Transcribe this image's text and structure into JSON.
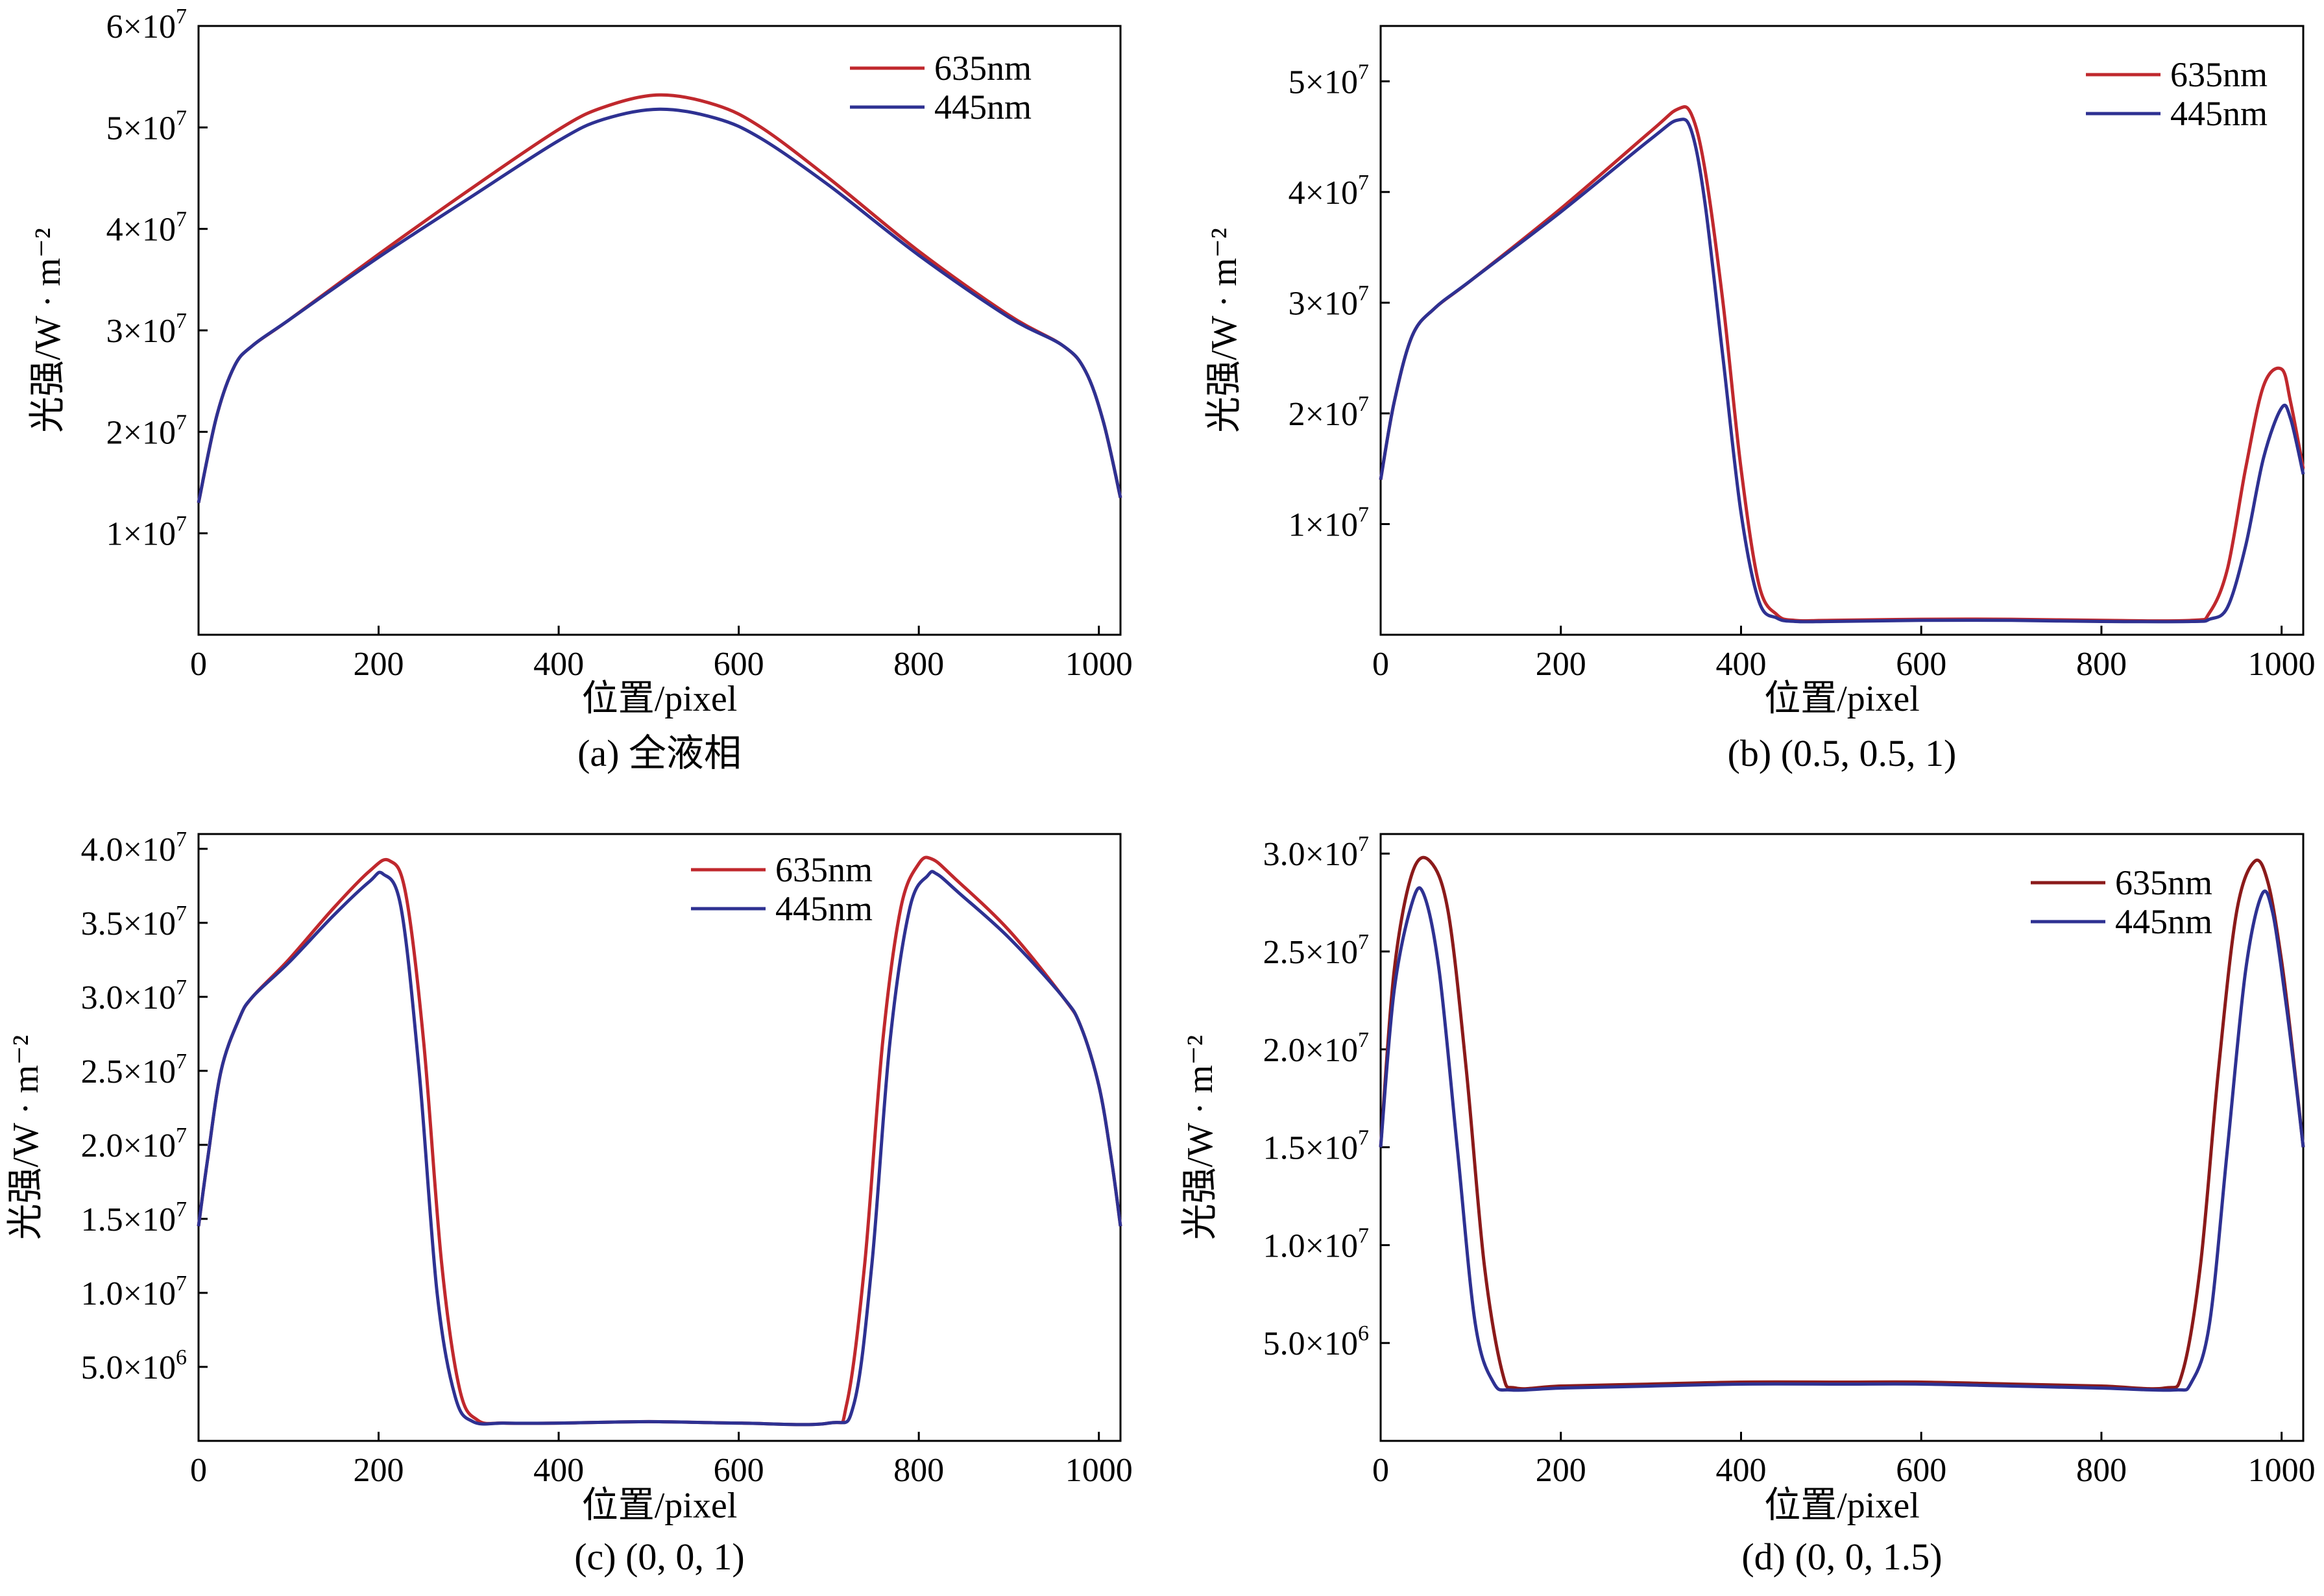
{
  "colors": {
    "red": "#c0282d",
    "blue": "#2e3192",
    "darkred": "#8b1a1a",
    "darkblue": "#1f1f5c"
  },
  "chart_data": [
    {
      "type": "line",
      "caption": "(a) 全液相",
      "xlabel": "位置/pixel",
      "ylabel": "光强/W · m⁻²",
      "xlim": [
        0,
        1024
      ],
      "ylim": [
        0,
        60000000
      ],
      "x_ticks": [
        0,
        200,
        400,
        600,
        800,
        1000
      ],
      "x_tick_labels": [
        "0",
        "200",
        "400",
        "600",
        "800",
        "1000"
      ],
      "y_ticks": [
        10000000,
        20000000,
        30000000,
        40000000,
        50000000,
        60000000
      ],
      "y_tick_labels": [
        [
          "1",
          "7"
        ],
        [
          "2",
          "7"
        ],
        [
          "3",
          "7"
        ],
        [
          "4",
          "7"
        ],
        [
          "5",
          "7"
        ],
        [
          "6",
          "7"
        ]
      ],
      "legend": "top-right",
      "series": [
        {
          "name": "635nm",
          "color": "#c0282d",
          "x": [
            0,
            20,
            40,
            60,
            100,
            200,
            300,
            400,
            450,
            512,
            575,
            625,
            700,
            800,
            900,
            960,
            985,
            1005,
            1024
          ],
          "y": [
            13000000,
            21500000,
            26500000,
            28500000,
            31000000,
            37500000,
            43800000,
            49800000,
            52000000,
            53200000,
            52200000,
            50000000,
            45000000,
            37800000,
            31500000,
            28500000,
            26000000,
            21000000,
            13500000
          ]
        },
        {
          "name": "445nm",
          "color": "#2e3192",
          "x": [
            0,
            20,
            40,
            60,
            100,
            200,
            300,
            400,
            450,
            512,
            575,
            625,
            700,
            800,
            900,
            960,
            985,
            1005,
            1024
          ],
          "y": [
            13000000,
            21500000,
            26500000,
            28500000,
            31000000,
            37200000,
            43000000,
            48700000,
            50800000,
            51800000,
            50900000,
            48900000,
            44300000,
            37400000,
            31300000,
            28500000,
            26000000,
            21000000,
            13500000
          ]
        }
      ]
    },
    {
      "type": "line",
      "caption": "(b) (0.5, 0.5, 1)",
      "xlabel": "位置/pixel",
      "ylabel": "光强/W · m⁻²",
      "xlim": [
        0,
        1024
      ],
      "ylim": [
        0,
        55000000
      ],
      "x_ticks": [
        0,
        200,
        400,
        600,
        800,
        1000
      ],
      "x_tick_labels": [
        "0",
        "200",
        "400",
        "600",
        "800",
        "1000"
      ],
      "y_ticks": [
        10000000,
        20000000,
        30000000,
        40000000,
        50000000
      ],
      "y_tick_labels": [
        [
          "1",
          "7"
        ],
        [
          "2",
          "7"
        ],
        [
          "3",
          "7"
        ],
        [
          "4",
          "7"
        ],
        [
          "5",
          "7"
        ]
      ],
      "legend": "top-right",
      "series": [
        {
          "name": "635nm",
          "color": "#c0282d",
          "x": [
            0,
            15,
            35,
            60,
            100,
            200,
            300,
            330,
            345,
            360,
            380,
            400,
            420,
            440,
            460,
            500,
            600,
            700,
            800,
            900,
            920,
            940,
            960,
            980,
            1000,
            1010,
            1024
          ],
          "y": [
            14000000,
            21000000,
            27000000,
            29500000,
            32000000,
            38500000,
            45500000,
            47500000,
            47000000,
            42000000,
            30000000,
            15000000,
            4500000,
            1800000,
            1300000,
            1300000,
            1400000,
            1400000,
            1300000,
            1300000,
            2000000,
            6000000,
            15000000,
            22500000,
            24000000,
            21000000,
            15000000
          ]
        },
        {
          "name": "445nm",
          "color": "#2e3192",
          "x": [
            0,
            15,
            35,
            60,
            100,
            200,
            300,
            330,
            345,
            360,
            380,
            400,
            420,
            440,
            460,
            500,
            600,
            700,
            800,
            900,
            920,
            940,
            960,
            980,
            1000,
            1010,
            1024
          ],
          "y": [
            14000000,
            21000000,
            27000000,
            29500000,
            32000000,
            38200000,
            44800000,
            46500000,
            45500000,
            39000000,
            25000000,
            11000000,
            3000000,
            1500000,
            1200000,
            1200000,
            1300000,
            1300000,
            1200000,
            1200000,
            1400000,
            2500000,
            8000000,
            16000000,
            20500000,
            19500000,
            14500000
          ]
        }
      ]
    },
    {
      "type": "line",
      "caption": "(c) (0, 0, 1)",
      "xlabel": "位置/pixel",
      "ylabel": "光强/W · m⁻²",
      "xlim": [
        0,
        1024
      ],
      "ylim": [
        0,
        41000000
      ],
      "x_ticks": [
        0,
        200,
        400,
        600,
        800,
        1000
      ],
      "x_tick_labels": [
        "0",
        "200",
        "400",
        "600",
        "800",
        "1000"
      ],
      "y_ticks": [
        5000000,
        10000000,
        15000000,
        20000000,
        25000000,
        30000000,
        35000000,
        40000000
      ],
      "y_tick_labels": [
        [
          "5.0",
          "6"
        ],
        [
          "1.0",
          "7"
        ],
        [
          "1.5",
          "7"
        ],
        [
          "2.0",
          "7"
        ],
        [
          "2.5",
          "7"
        ],
        [
          "3.0",
          "7"
        ],
        [
          "3.5",
          "7"
        ],
        [
          "4.0",
          "7"
        ]
      ],
      "legend": "top-right",
      "series": [
        {
          "name": "635nm",
          "color": "#c0282d",
          "x": [
            0,
            10,
            25,
            45,
            60,
            100,
            150,
            190,
            212,
            230,
            250,
            270,
            290,
            310,
            340,
            400,
            500,
            600,
            700,
            720,
            740,
            760,
            780,
            800,
            815,
            840,
            900,
            960,
            980,
            1000,
            1014,
            1024
          ],
          "y": [
            14500000,
            19000000,
            25000000,
            28500000,
            30000000,
            32500000,
            36000000,
            38500000,
            39200000,
            37000000,
            27000000,
            12000000,
            3500000,
            1400000,
            1200000,
            1200000,
            1300000,
            1200000,
            1200000,
            2500000,
            12000000,
            27000000,
            36000000,
            39000000,
            39300000,
            38000000,
            34500000,
            30000000,
            28000000,
            24000000,
            19000000,
            14500000
          ]
        },
        {
          "name": "445nm",
          "color": "#2e3192",
          "x": [
            0,
            10,
            25,
            45,
            60,
            100,
            150,
            190,
            205,
            225,
            245,
            265,
            285,
            305,
            340,
            400,
            500,
            600,
            700,
            728,
            748,
            768,
            790,
            810,
            820,
            845,
            900,
            960,
            980,
            1000,
            1014,
            1024
          ],
          "y": [
            14500000,
            19000000,
            25000000,
            28500000,
            30000000,
            32300000,
            35500000,
            37800000,
            38300000,
            36000000,
            25000000,
            10000000,
            3000000,
            1300000,
            1200000,
            1200000,
            1300000,
            1200000,
            1200000,
            2500000,
            12000000,
            27000000,
            36000000,
            38200000,
            38300000,
            37000000,
            34000000,
            30000000,
            28000000,
            24000000,
            19000000,
            14500000
          ]
        }
      ]
    },
    {
      "type": "line",
      "caption": "(d) (0, 0, 1.5)",
      "xlabel": "位置/pixel",
      "ylabel": "光强/W · m⁻²",
      "xlim": [
        0,
        1024
      ],
      "ylim": [
        0,
        31000000
      ],
      "x_ticks": [
        0,
        200,
        400,
        600,
        800,
        1000
      ],
      "x_tick_labels": [
        "0",
        "200",
        "400",
        "600",
        "800",
        "1000"
      ],
      "y_ticks": [
        5000000,
        10000000,
        15000000,
        20000000,
        25000000,
        30000000
      ],
      "y_tick_labels": [
        [
          "5.0",
          "6"
        ],
        [
          "1.0",
          "7"
        ],
        [
          "1.5",
          "7"
        ],
        [
          "2.0",
          "7"
        ],
        [
          "2.5",
          "7"
        ],
        [
          "3.0",
          "7"
        ]
      ],
      "legend": "top-right",
      "series": [
        {
          "name": "635nm",
          "color": "#8b1a1a",
          "x": [
            0,
            15,
            35,
            55,
            75,
            95,
            115,
            135,
            150,
            200,
            300,
            400,
            512,
            600,
            700,
            800,
            870,
            890,
            910,
            930,
            950,
            970,
            985,
            1000,
            1012,
            1024
          ],
          "y": [
            15000000,
            24000000,
            29000000,
            29600000,
            27000000,
            19000000,
            9000000,
            3500000,
            2700000,
            2800000,
            2900000,
            3000000,
            3000000,
            3000000,
            2900000,
            2800000,
            2700000,
            3500000,
            9000000,
            19000000,
            27000000,
            29600000,
            28500000,
            24500000,
            20000000,
            15000000
          ]
        },
        {
          "name": "445nm",
          "color": "#2e3192",
          "x": [
            0,
            15,
            35,
            48,
            65,
            85,
            105,
            125,
            145,
            200,
            300,
            400,
            512,
            600,
            700,
            800,
            880,
            900,
            920,
            940,
            960,
            978,
            990,
            1003,
            1014,
            1024
          ],
          "y": [
            15000000,
            23000000,
            27500000,
            27900000,
            24000000,
            15000000,
            6000000,
            3000000,
            2600000,
            2700000,
            2800000,
            2900000,
            2900000,
            2900000,
            2800000,
            2700000,
            2600000,
            3000000,
            6000000,
            15000000,
            24000000,
            27900000,
            27000000,
            23000000,
            19000000,
            15000000
          ]
        }
      ]
    }
  ]
}
